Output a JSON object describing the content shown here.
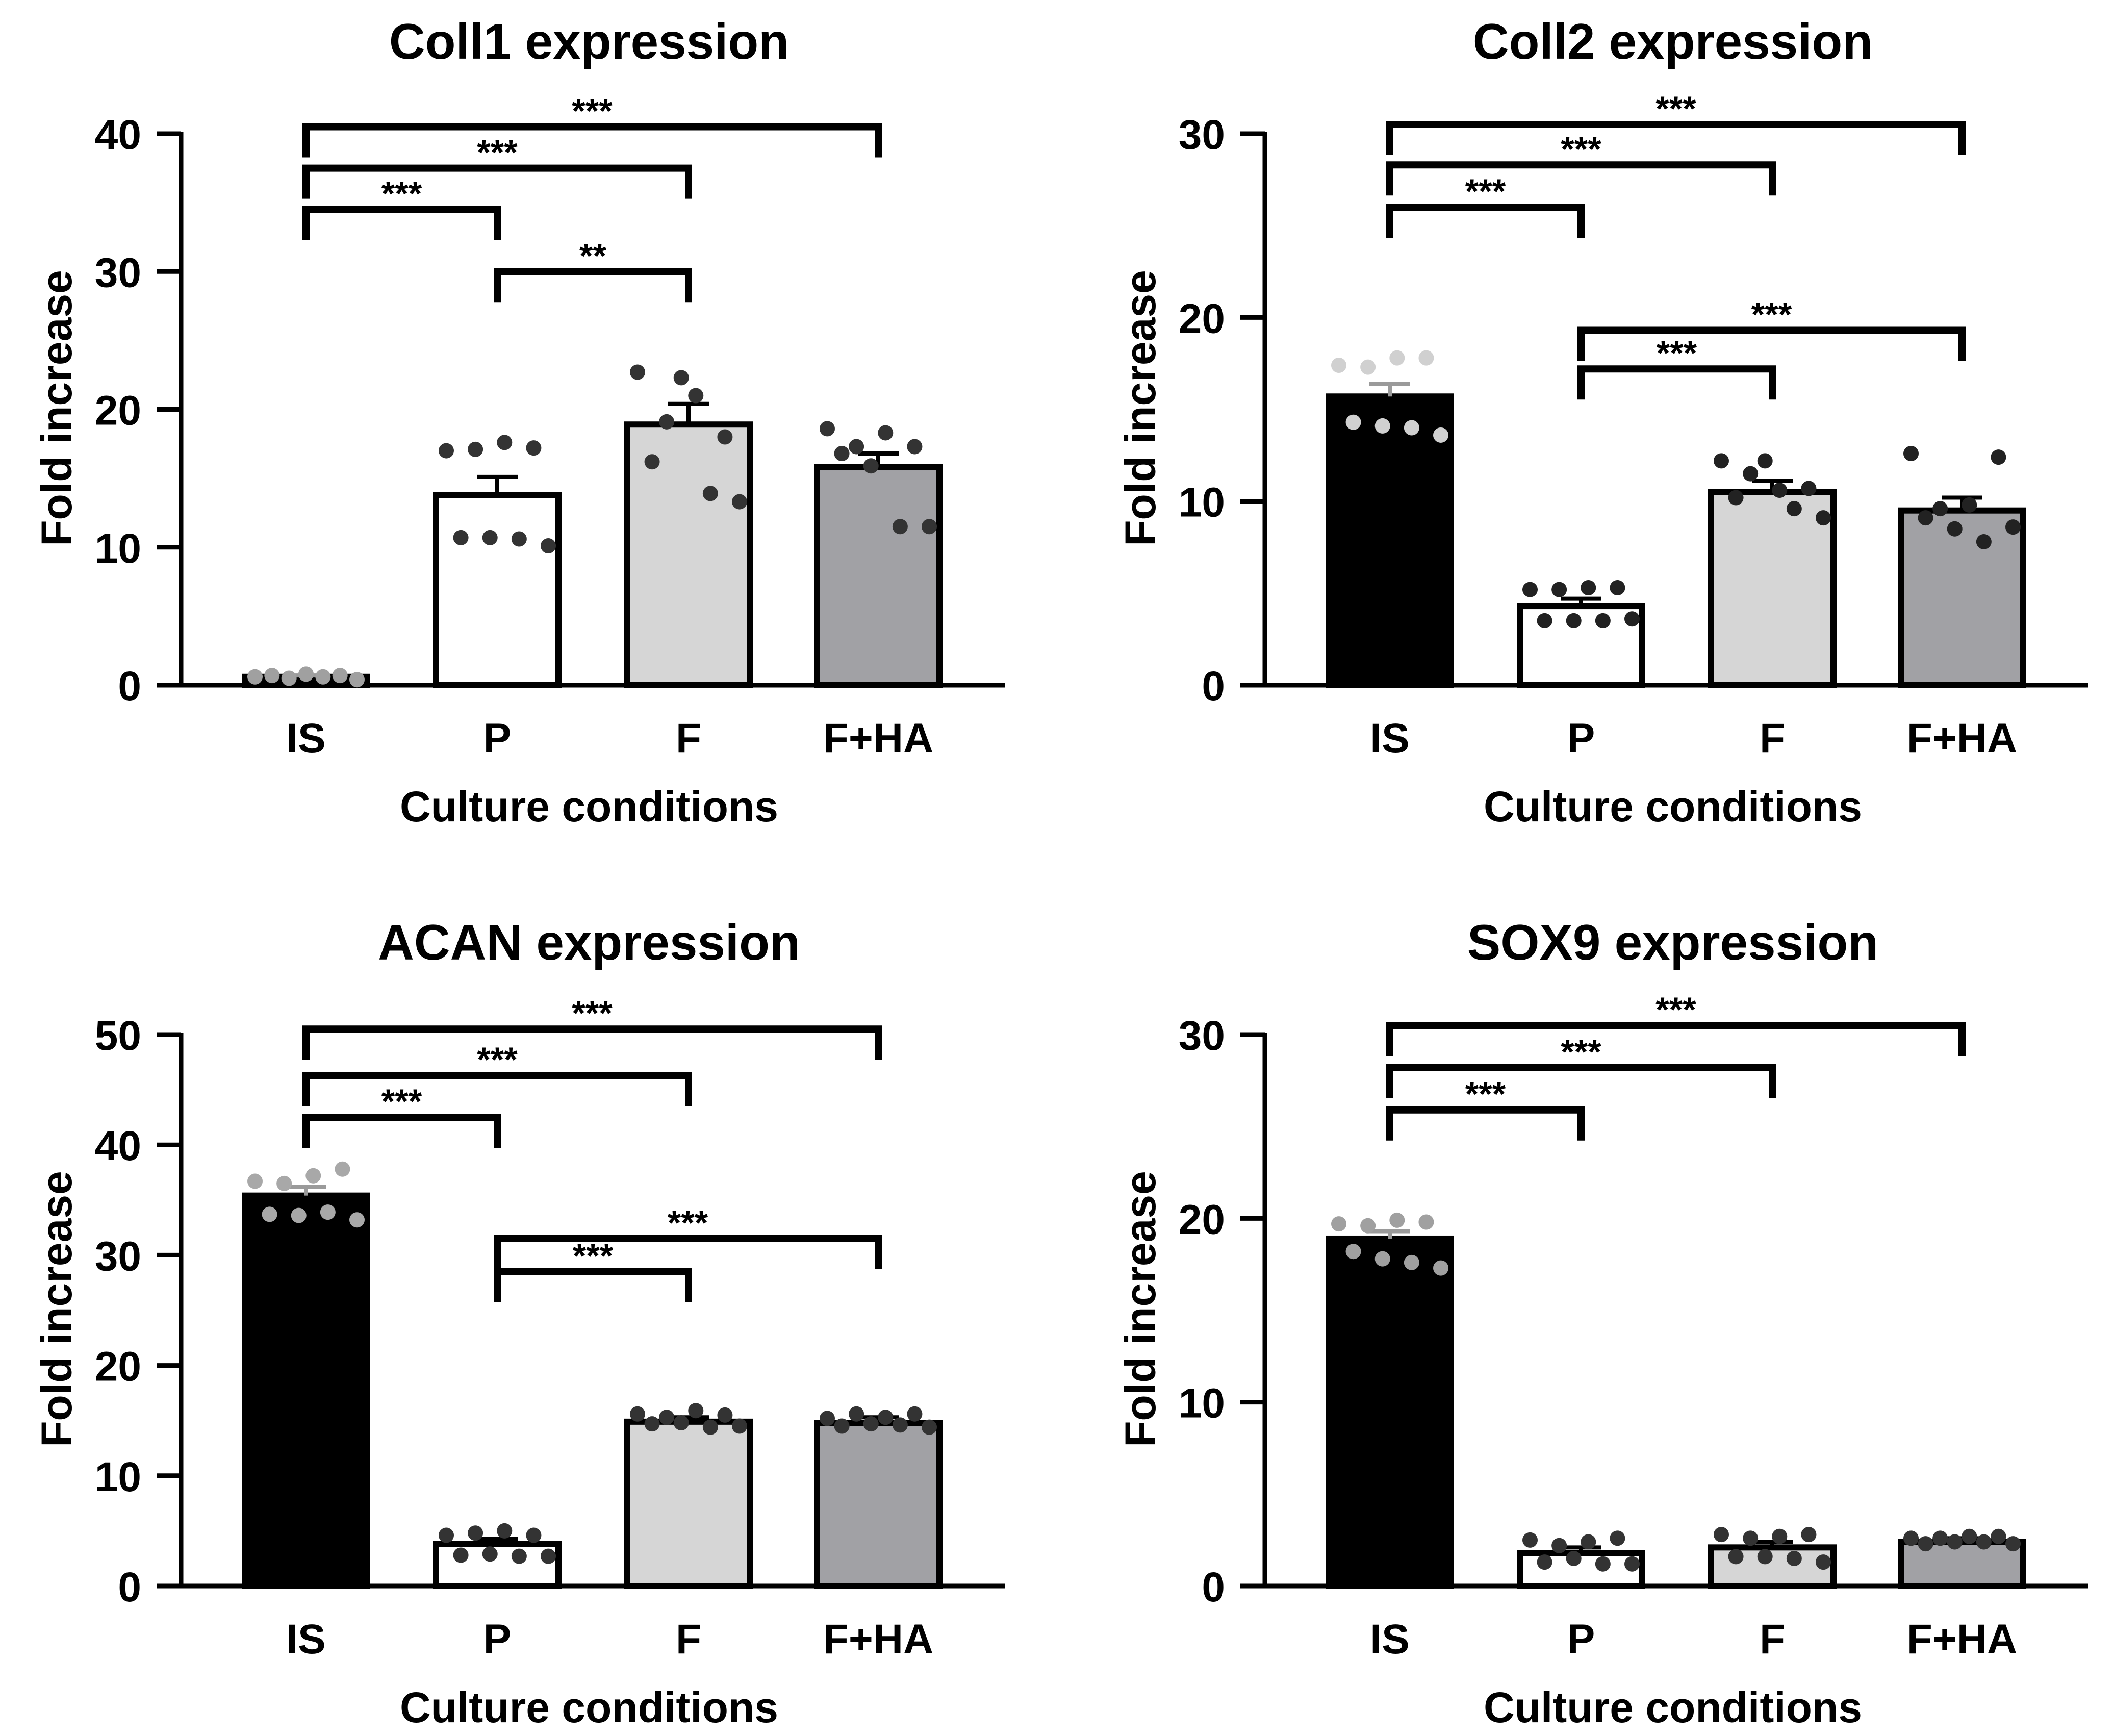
{
  "figure": {
    "chart_data": [
      {
        "type": "bar",
        "title": "Coll1 expression",
        "xlabel": "Culture conditions",
        "ylabel": "Fold increase",
        "ylim": [
          0,
          40
        ],
        "yticks": [
          0,
          10,
          20,
          30,
          40
        ],
        "categories": [
          "IS",
          "P",
          "F",
          "F+HA"
        ],
        "values": [
          0.6,
          13.8,
          18.9,
          15.8
        ],
        "errors": [
          0.1,
          1.3,
          1.5,
          1.0
        ],
        "bar_colors": [
          "#000000",
          "#ffffff",
          "#d6d6d6",
          "#a1a1a5"
        ],
        "dot_colors": [
          "#a0a0a0",
          "#333333",
          "#333333",
          "#333333"
        ],
        "points": [
          [
            0.6,
            0.7,
            0.5,
            0.8,
            0.6,
            0.7,
            0.4
          ],
          [
            17.0,
            10.7,
            17.1,
            10.7,
            17.6,
            10.6,
            17.2,
            10.1
          ],
          [
            22.7,
            16.2,
            19.1,
            22.3,
            21.0,
            13.9,
            18.0,
            13.3
          ],
          [
            18.6,
            16.8,
            17.3,
            15.9,
            18.3,
            11.5,
            17.3,
            11.5
          ]
        ],
        "significance": [
          {
            "from": 0,
            "to": 1,
            "label": "***",
            "y": 34.5
          },
          {
            "from": 0,
            "to": 2,
            "label": "***",
            "y": 37.5
          },
          {
            "from": 0,
            "to": 3,
            "label": "***",
            "y": 40.5
          },
          {
            "from": 1,
            "to": 2,
            "label": "**",
            "y": 30.0
          }
        ]
      },
      {
        "type": "bar",
        "title": "Coll2 expression",
        "xlabel": "Culture conditions",
        "ylabel": "Fold increase",
        "ylim": [
          0,
          30
        ],
        "yticks": [
          0,
          10,
          20,
          30
        ],
        "categories": [
          "IS",
          "P",
          "F",
          "F+HA"
        ],
        "values": [
          15.7,
          4.3,
          10.5,
          9.5
        ],
        "errors": [
          0.7,
          0.4,
          0.6,
          0.7
        ],
        "bar_colors": [
          "#000000",
          "#ffffff",
          "#d6d6d6",
          "#a1a1a5"
        ],
        "dot_colors": [
          "#d0d0d0",
          "#222222",
          "#222222",
          "#222222"
        ],
        "points": [
          [
            17.4,
            14.3,
            17.3,
            14.1,
            17.8,
            14.0,
            17.8,
            13.6
          ],
          [
            5.2,
            3.5,
            5.2,
            3.5,
            5.3,
            3.5,
            5.3,
            3.6
          ],
          [
            12.2,
            10.2,
            11.5,
            12.2,
            10.6,
            9.6,
            10.7,
            9.1
          ],
          [
            12.6,
            9.1,
            9.6,
            8.5,
            9.8,
            7.8,
            12.4,
            8.6
          ]
        ],
        "significance": [
          {
            "from": 0,
            "to": 1,
            "label": "***",
            "y": 26.0
          },
          {
            "from": 0,
            "to": 2,
            "label": "***",
            "y": 28.3
          },
          {
            "from": 0,
            "to": 3,
            "label": "***",
            "y": 30.5
          },
          {
            "from": 1,
            "to": 2,
            "label": "***",
            "y": 17.2
          },
          {
            "from": 1,
            "to": 3,
            "label": "***",
            "y": 19.3
          }
        ]
      },
      {
        "type": "bar",
        "title": "ACAN expression",
        "xlabel": "Culture conditions",
        "ylabel": "Fold increase",
        "ylim": [
          0,
          50
        ],
        "yticks": [
          0,
          10,
          20,
          30,
          40,
          50
        ],
        "categories": [
          "IS",
          "P",
          "F",
          "F+HA"
        ],
        "values": [
          35.4,
          3.8,
          14.9,
          14.8
        ],
        "errors": [
          0.8,
          0.5,
          0.4,
          0.5
        ],
        "bar_colors": [
          "#000000",
          "#ffffff",
          "#d6d6d6",
          "#a1a1a5"
        ],
        "dot_colors": [
          "#a8a8a8",
          "#333333",
          "#333333",
          "#333333"
        ],
        "points": [
          [
            36.7,
            33.7,
            36.5,
            33.6,
            37.2,
            33.9,
            37.8,
            33.2
          ],
          [
            4.6,
            2.8,
            4.8,
            2.9,
            5.0,
            2.7,
            4.6,
            2.7
          ],
          [
            15.6,
            14.7,
            15.3,
            14.8,
            15.9,
            14.4,
            15.5,
            14.5
          ],
          [
            15.2,
            14.5,
            15.6,
            14.7,
            15.3,
            14.6,
            15.6,
            14.4
          ]
        ],
        "significance": [
          {
            "from": 0,
            "to": 1,
            "label": "***",
            "y": 42.5
          },
          {
            "from": 0,
            "to": 2,
            "label": "***",
            "y": 46.3
          },
          {
            "from": 0,
            "to": 3,
            "label": "***",
            "y": 50.5
          },
          {
            "from": 1,
            "to": 2,
            "label": "***",
            "y": 28.5
          },
          {
            "from": 1,
            "to": 3,
            "label": "***",
            "y": 31.5
          }
        ]
      },
      {
        "type": "bar",
        "title": "SOX9 expression",
        "xlabel": "Culture conditions",
        "ylabel": "Fold increase",
        "ylim": [
          0,
          30
        ],
        "yticks": [
          0,
          10,
          20,
          30
        ],
        "categories": [
          "IS",
          "P",
          "F",
          "F+HA"
        ],
        "values": [
          18.9,
          1.8,
          2.1,
          2.4
        ],
        "errors": [
          0.4,
          0.3,
          0.3,
          0.2
        ],
        "bar_colors": [
          "#000000",
          "#ffffff",
          "#d6d6d6",
          "#a1a1a5"
        ],
        "dot_colors": [
          "#a0a0a0",
          "#333333",
          "#333333",
          "#333333"
        ],
        "points": [
          [
            19.7,
            18.2,
            19.6,
            17.8,
            19.9,
            17.6,
            19.8,
            17.3
          ],
          [
            2.5,
            1.3,
            2.2,
            1.5,
            2.4,
            1.2,
            2.6,
            1.2
          ],
          [
            2.8,
            1.6,
            2.6,
            1.6,
            2.7,
            1.5,
            2.8,
            1.3
          ],
          [
            2.6,
            2.3,
            2.6,
            2.4,
            2.7,
            2.4,
            2.7,
            2.3
          ]
        ],
        "significance": [
          {
            "from": 0,
            "to": 1,
            "label": "***",
            "y": 25.9
          },
          {
            "from": 0,
            "to": 2,
            "label": "***",
            "y": 28.2
          },
          {
            "from": 0,
            "to": 3,
            "label": "***",
            "y": 30.5
          }
        ]
      }
    ]
  }
}
